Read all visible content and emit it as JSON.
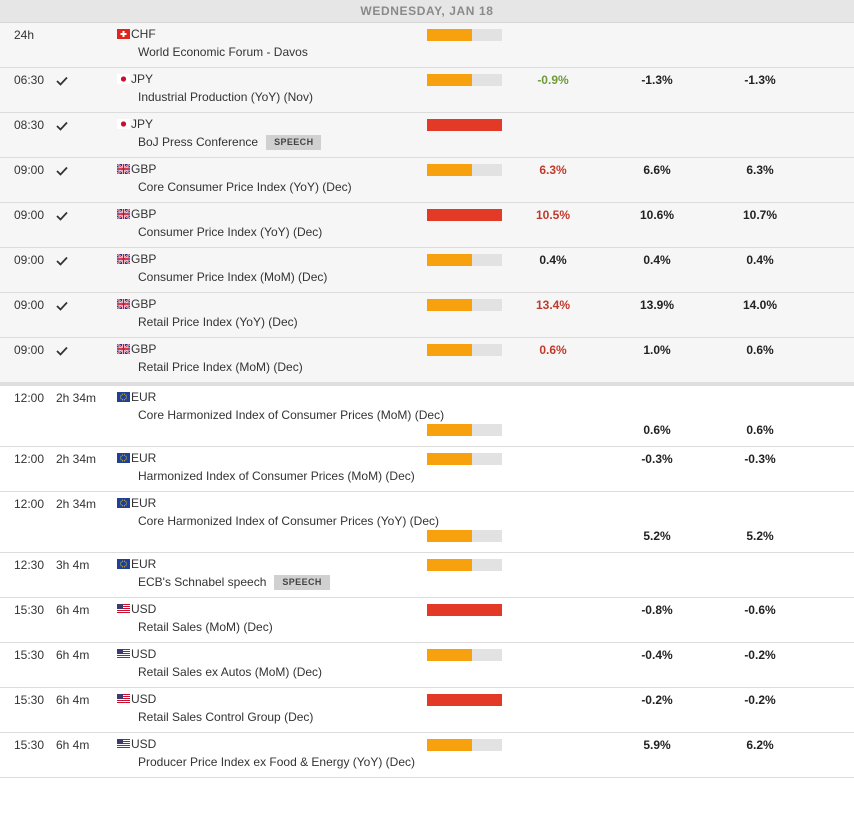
{
  "header": {
    "title": "WEDNESDAY, JAN 18"
  },
  "sections": [
    {
      "rows": [
        {
          "time": "24h",
          "currency": "CHF",
          "event": "World Economic Forum - Davos",
          "impact": "medium"
        },
        {
          "time": "06:30",
          "checked": true,
          "currency": "JPY",
          "event": "Industrial Production (YoY) (Nov)",
          "impact": "medium",
          "actual": "-0.9%",
          "actual_color": "#6f9a3c",
          "consensus": "-1.3%",
          "previous": "-1.3%"
        },
        {
          "time": "08:30",
          "checked": true,
          "currency": "JPY",
          "event": "BoJ Press Conference",
          "badge": "SPEECH",
          "impact": "high"
        },
        {
          "time": "09:00",
          "checked": true,
          "currency": "GBP",
          "event": "Core Consumer Price Index (YoY) (Dec)",
          "impact": "medium",
          "actual": "6.3%",
          "actual_color": "#c0392b",
          "consensus": "6.6%",
          "previous": "6.3%"
        },
        {
          "time": "09:00",
          "checked": true,
          "currency": "GBP",
          "event": "Consumer Price Index (YoY) (Dec)",
          "impact": "high",
          "actual": "10.5%",
          "actual_color": "#c0392b",
          "consensus": "10.6%",
          "previous": "10.7%"
        },
        {
          "time": "09:00",
          "checked": true,
          "currency": "GBP",
          "event": "Consumer Price Index (MoM) (Dec)",
          "impact": "medium",
          "actual": "0.4%",
          "actual_color": "#222222",
          "consensus": "0.4%",
          "previous": "0.4%"
        },
        {
          "time": "09:00",
          "checked": true,
          "currency": "GBP",
          "event": "Retail Price Index (YoY) (Dec)",
          "impact": "medium",
          "actual": "13.4%",
          "actual_color": "#c0392b",
          "consensus": "13.9%",
          "previous": "14.0%"
        },
        {
          "time": "09:00",
          "checked": true,
          "currency": "GBP",
          "event": "Retail Price Index (MoM) (Dec)",
          "impact": "medium",
          "actual": "0.6%",
          "actual_color": "#c0392b",
          "consensus": "1.0%",
          "previous": "0.6%"
        }
      ]
    },
    {
      "rows": [
        {
          "time": "12:00",
          "countdown": "2h 34m",
          "currency": "EUR",
          "event": "Core Harmonized Index of Consumer Prices (MoM) (Dec)",
          "impact": "medium",
          "consensus": "0.6%",
          "previous": "0.6%"
        },
        {
          "time": "12:00",
          "countdown": "2h 34m",
          "currency": "EUR",
          "event": "Harmonized Index of Consumer Prices (MoM) (Dec)",
          "impact": "medium",
          "consensus": "-0.3%",
          "previous": "-0.3%"
        },
        {
          "time": "12:00",
          "countdown": "2h 34m",
          "currency": "EUR",
          "event": "Core Harmonized Index of Consumer Prices (YoY) (Dec)",
          "impact": "medium",
          "consensus": "5.2%",
          "previous": "5.2%"
        },
        {
          "time": "12:30",
          "countdown": "3h 4m",
          "currency": "EUR",
          "event": "ECB's Schnabel speech",
          "badge": "SPEECH",
          "impact": "medium"
        },
        {
          "time": "15:30",
          "countdown": "6h 4m",
          "currency": "USD",
          "event": "Retail Sales (MoM) (Dec)",
          "impact": "high",
          "consensus": "-0.8%",
          "previous": "-0.6%"
        },
        {
          "time": "15:30",
          "countdown": "6h 4m",
          "currency": "USD",
          "event": "Retail Sales ex Autos (MoM) (Dec)",
          "impact": "medium",
          "consensus": "-0.4%",
          "previous": "-0.2%"
        },
        {
          "time": "15:30",
          "countdown": "6h 4m",
          "currency": "USD",
          "event": "Retail Sales Control Group (Dec)",
          "impact": "high",
          "consensus": "-0.2%",
          "previous": "-0.2%"
        },
        {
          "time": "15:30",
          "countdown": "6h 4m",
          "currency": "USD",
          "event": "Producer Price Index ex Food & Energy (YoY) (Dec)",
          "impact": "medium",
          "consensus": "5.9%",
          "previous": "6.2%"
        }
      ]
    }
  ]
}
